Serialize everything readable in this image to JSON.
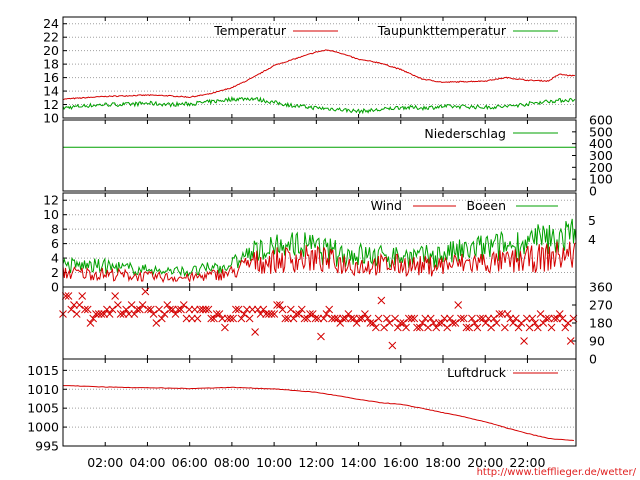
{
  "source_url": "http://www.tiefflieger.de/wetter/",
  "colors": {
    "red": "#d40000",
    "green": "#00a000",
    "grid": "#a0a0a0",
    "axis": "#000000"
  },
  "chart_data": [
    {
      "type": "line",
      "panel": "temperature",
      "series": [
        {
          "name": "Temperatur",
          "color": "#d40000"
        },
        {
          "name": "Taupunkttemperatur",
          "color": "#00a000"
        }
      ],
      "x_ticks": [
        "02:00",
        "04:00",
        "06:00",
        "08:00",
        "10:00",
        "12:00",
        "14:00",
        "16:00",
        "18:00",
        "20:00",
        "22:00"
      ],
      "x_tick_hours": [
        2,
        4,
        6,
        8,
        10,
        12,
        14,
        16,
        18,
        20,
        22
      ],
      "xlim": [
        0,
        24.3
      ],
      "ylim": [
        10,
        25
      ],
      "y_ticks": [
        10,
        12,
        14,
        16,
        18,
        20,
        22,
        24
      ],
      "grid": true,
      "temperatur": {
        "hours": [
          0,
          1,
          2,
          3,
          4,
          5,
          6,
          7,
          8,
          9,
          10,
          11,
          12,
          12.5,
          13,
          14,
          15,
          16,
          17,
          18,
          19,
          20,
          21,
          22,
          23,
          23.5,
          24
        ],
        "values": [
          12.8,
          13.0,
          13.2,
          13.3,
          13.4,
          13.3,
          13.1,
          13.6,
          14.5,
          16.0,
          17.8,
          18.8,
          19.8,
          20.1,
          19.8,
          18.7,
          18.2,
          17.2,
          15.8,
          15.3,
          15.4,
          15.5,
          16.0,
          15.6,
          15.5,
          16.5,
          16.3
        ]
      },
      "taupunkt": {
        "hours": [
          0,
          1,
          2,
          3,
          4,
          5,
          6,
          7,
          8,
          9,
          10,
          11,
          12,
          13,
          14,
          15,
          16,
          17,
          18,
          19,
          20,
          21,
          22,
          23,
          24
        ],
        "values": [
          11.5,
          11.8,
          12.0,
          12.0,
          12.2,
          12.0,
          12.1,
          12.4,
          12.8,
          12.9,
          12.3,
          11.8,
          11.5,
          11.3,
          11.0,
          11.2,
          11.6,
          11.5,
          11.7,
          11.7,
          11.6,
          11.7,
          12.1,
          12.5,
          12.7
        ]
      }
    },
    {
      "type": "line",
      "panel": "precipitation",
      "series": [
        {
          "name": "Niederschlag",
          "color": "#00a000"
        }
      ],
      "y_ticks_right": [
        0,
        100,
        200,
        300,
        400,
        500,
        600
      ],
      "ylim": [
        0,
        600
      ],
      "hours": [
        0,
        24.3
      ],
      "values": [
        370,
        370
      ]
    },
    {
      "type": "line",
      "panel": "wind",
      "series": [
        {
          "name": "Wind",
          "color": "#d40000"
        },
        {
          "name": "Boeen",
          "color": "#00a000"
        }
      ],
      "ylim": [
        0,
        13
      ],
      "y_ticks": [
        0,
        2,
        4,
        6,
        8,
        10,
        12
      ],
      "y_ticks_right": [
        4,
        5
      ],
      "wind_envelope": {
        "hours": [
          0,
          2,
          4,
          6,
          8,
          9,
          10,
          11,
          12,
          13,
          14,
          15,
          16,
          17,
          18,
          19,
          20,
          21,
          22,
          23,
          24
        ],
        "values": [
          2.2,
          2.0,
          1.6,
          1.4,
          2.2,
          3.8,
          4.0,
          4.4,
          4.3,
          3.8,
          3.3,
          3.4,
          3.4,
          3.2,
          3.4,
          3.6,
          3.8,
          3.8,
          4.2,
          4.6,
          5.0
        ]
      },
      "gust_envelope": {
        "hours": [
          0,
          2,
          4,
          6,
          8,
          9,
          10,
          11,
          12,
          13,
          14,
          15,
          16,
          17,
          18,
          19,
          20,
          21,
          22,
          23,
          24
        ],
        "values": [
          3.2,
          3.0,
          2.4,
          2.2,
          3.2,
          5.0,
          5.5,
          6.2,
          5.6,
          5.0,
          4.8,
          4.5,
          4.5,
          4.4,
          4.8,
          5.2,
          5.8,
          6.0,
          6.5,
          7.0,
          7.5
        ]
      }
    },
    {
      "type": "scatter",
      "panel": "wind_direction",
      "series": [
        {
          "name": "",
          "color": "#d40000"
        }
      ],
      "ylim": [
        0,
        360
      ],
      "y_ticks_right": [
        0,
        90,
        180,
        270,
        360
      ],
      "marker": "x",
      "profile": {
        "hours": [
          0,
          2,
          4,
          6,
          8,
          10,
          12,
          14,
          16,
          18,
          20,
          22,
          24
        ],
        "values": [
          250,
          240,
          240,
          230,
          220,
          230,
          220,
          200,
          180,
          180,
          185,
          190,
          195
        ]
      }
    },
    {
      "type": "line",
      "panel": "pressure",
      "series": [
        {
          "name": "Luftdruck",
          "color": "#d40000"
        }
      ],
      "ylim": [
        995,
        1018
      ],
      "y_ticks": [
        995,
        1000,
        1005,
        1010,
        1015
      ],
      "hours": [
        0,
        2,
        4,
        6,
        8,
        10,
        12,
        13,
        14,
        15,
        16,
        17,
        18,
        19,
        20,
        21,
        22,
        23,
        24
      ],
      "values": [
        1011,
        1010.6,
        1010.4,
        1010.2,
        1010.5,
        1010.1,
        1009.2,
        1008.3,
        1007.3,
        1006.5,
        1006.0,
        1005.0,
        1003.8,
        1002.7,
        1001.4,
        999.8,
        998.3,
        997.0,
        996.5
      ]
    }
  ]
}
